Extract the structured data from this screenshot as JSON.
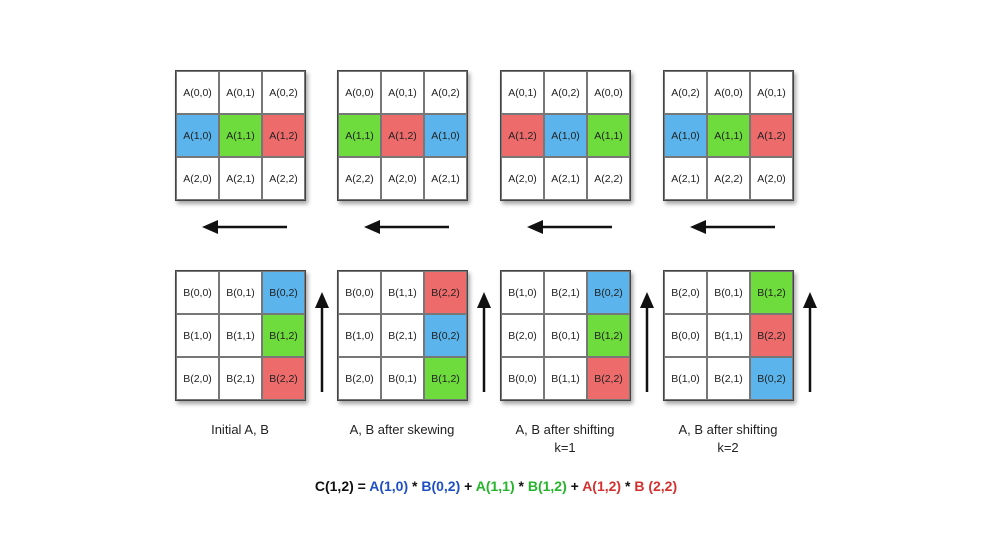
{
  "colors": {
    "blue": "#5bb5ec",
    "green": "#6edc3c",
    "red": "#ee6b6b",
    "white": "#ffffff",
    "formula_blue": "#1f4fc4",
    "formula_green": "#24b52b",
    "formula_red": "#d43030",
    "formula_black": "#111111"
  },
  "stages": [
    {
      "A": [
        [
          {
            "t": "A(0,0)",
            "c": "white"
          },
          {
            "t": "A(0,1)",
            "c": "white"
          },
          {
            "t": "A(0,2)",
            "c": "white"
          }
        ],
        [
          {
            "t": "A(1,0)",
            "c": "blue"
          },
          {
            "t": "A(1,1)",
            "c": "green"
          },
          {
            "t": "A(1,2)",
            "c": "red"
          }
        ],
        [
          {
            "t": "A(2,0)",
            "c": "white"
          },
          {
            "t": "A(2,1)",
            "c": "white"
          },
          {
            "t": "A(2,2)",
            "c": "white"
          }
        ]
      ],
      "B": [
        [
          {
            "t": "B(0,0)",
            "c": "white"
          },
          {
            "t": "B(0,1)",
            "c": "white"
          },
          {
            "t": "B(0,2)",
            "c": "blue"
          }
        ],
        [
          {
            "t": "B(1,0)",
            "c": "white"
          },
          {
            "t": "B(1,1)",
            "c": "white"
          },
          {
            "t": "B(1,2)",
            "c": "green"
          }
        ],
        [
          {
            "t": "B(2,0)",
            "c": "white"
          },
          {
            "t": "B(2,1)",
            "c": "white"
          },
          {
            "t": "B(2,2)",
            "c": "red"
          }
        ]
      ],
      "caption": [
        "Initial A, B"
      ]
    },
    {
      "A": [
        [
          {
            "t": "A(0,0)",
            "c": "white"
          },
          {
            "t": "A(0,1)",
            "c": "white"
          },
          {
            "t": "A(0,2)",
            "c": "white"
          }
        ],
        [
          {
            "t": "A(1,1)",
            "c": "green"
          },
          {
            "t": "A(1,2)",
            "c": "red"
          },
          {
            "t": "A(1,0)",
            "c": "blue"
          }
        ],
        [
          {
            "t": "A(2,2)",
            "c": "white"
          },
          {
            "t": "A(2,0)",
            "c": "white"
          },
          {
            "t": "A(2,1)",
            "c": "white"
          }
        ]
      ],
      "B": [
        [
          {
            "t": "B(0,0)",
            "c": "white"
          },
          {
            "t": "B(1,1)",
            "c": "white"
          },
          {
            "t": "B(2,2)",
            "c": "red"
          }
        ],
        [
          {
            "t": "B(1,0)",
            "c": "white"
          },
          {
            "t": "B(2,1)",
            "c": "white"
          },
          {
            "t": "B(0,2)",
            "c": "blue"
          }
        ],
        [
          {
            "t": "B(2,0)",
            "c": "white"
          },
          {
            "t": "B(0,1)",
            "c": "white"
          },
          {
            "t": "B(1,2)",
            "c": "green"
          }
        ]
      ],
      "caption": [
        "A, B after skewing"
      ]
    },
    {
      "A": [
        [
          {
            "t": "A(0,1)",
            "c": "white"
          },
          {
            "t": "A(0,2)",
            "c": "white"
          },
          {
            "t": "A(0,0)",
            "c": "white"
          }
        ],
        [
          {
            "t": "A(1,2)",
            "c": "red"
          },
          {
            "t": "A(1,0)",
            "c": "blue"
          },
          {
            "t": "A(1,1)",
            "c": "green"
          }
        ],
        [
          {
            "t": "A(2,0)",
            "c": "white"
          },
          {
            "t": "A(2,1)",
            "c": "white"
          },
          {
            "t": "A(2,2)",
            "c": "white"
          }
        ]
      ],
      "B": [
        [
          {
            "t": "B(1,0)",
            "c": "white"
          },
          {
            "t": "B(2,1)",
            "c": "white"
          },
          {
            "t": "B(0,2)",
            "c": "blue"
          }
        ],
        [
          {
            "t": "B(2,0)",
            "c": "white"
          },
          {
            "t": "B(0,1)",
            "c": "white"
          },
          {
            "t": "B(1,2)",
            "c": "green"
          }
        ],
        [
          {
            "t": "B(0,0)",
            "c": "white"
          },
          {
            "t": "B(1,1)",
            "c": "white"
          },
          {
            "t": "B(2,2)",
            "c": "red"
          }
        ]
      ],
      "caption": [
        "A, B after shifting",
        "k=1"
      ]
    },
    {
      "A": [
        [
          {
            "t": "A(0,2)",
            "c": "white"
          },
          {
            "t": "A(0,0)",
            "c": "white"
          },
          {
            "t": "A(0,1)",
            "c": "white"
          }
        ],
        [
          {
            "t": "A(1,0)",
            "c": "blue"
          },
          {
            "t": "A(1,1)",
            "c": "green"
          },
          {
            "t": "A(1,2)",
            "c": "red"
          }
        ],
        [
          {
            "t": "A(2,1)",
            "c": "white"
          },
          {
            "t": "A(2,2)",
            "c": "white"
          },
          {
            "t": "A(2,0)",
            "c": "white"
          }
        ]
      ],
      "B": [
        [
          {
            "t": "B(2,0)",
            "c": "white"
          },
          {
            "t": "B(0,1)",
            "c": "white"
          },
          {
            "t": "B(1,2)",
            "c": "green"
          }
        ],
        [
          {
            "t": "B(0,0)",
            "c": "white"
          },
          {
            "t": "B(1,1)",
            "c": "white"
          },
          {
            "t": "B(2,2)",
            "c": "red"
          }
        ],
        [
          {
            "t": "B(1,0)",
            "c": "white"
          },
          {
            "t": "B(2,1)",
            "c": "white"
          },
          {
            "t": "B(0,2)",
            "c": "blue"
          }
        ]
      ],
      "caption": [
        "A, B after shifting",
        "k=2"
      ]
    }
  ],
  "arrows": {
    "a_direction": "left",
    "b_direction": "up"
  },
  "formula": [
    {
      "t": "C(1,2) = ",
      "c": "formula_black"
    },
    {
      "t": "A(1,0)",
      "c": "formula_blue"
    },
    {
      "t": " * ",
      "c": "formula_black"
    },
    {
      "t": "B(0,2)",
      "c": "formula_blue"
    },
    {
      "t": " + ",
      "c": "formula_black"
    },
    {
      "t": "A(1,1)",
      "c": "formula_green"
    },
    {
      "t": " * ",
      "c": "formula_black"
    },
    {
      "t": "B(1,2)",
      "c": "formula_green"
    },
    {
      "t": " + ",
      "c": "formula_black"
    },
    {
      "t": "A(1,2)",
      "c": "formula_red"
    },
    {
      "t": " * ",
      "c": "formula_black"
    },
    {
      "t": "B (2,2)",
      "c": "formula_red"
    }
  ]
}
